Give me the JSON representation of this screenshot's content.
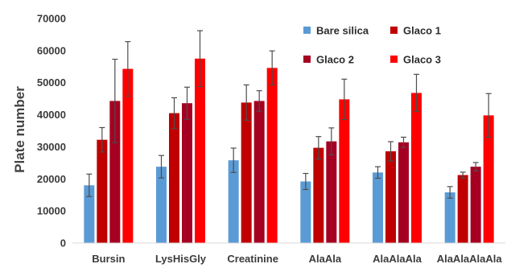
{
  "chart_data": {
    "type": "bar",
    "title": "",
    "xlabel": "",
    "ylabel": "Plate number",
    "ylim": [
      0,
      70000
    ],
    "yticks": [
      0,
      10000,
      20000,
      30000,
      40000,
      50000,
      60000,
      70000
    ],
    "grid": false,
    "legend_position": "top-right",
    "categories": [
      "Bursin",
      "LysHisGly",
      "Creatinine",
      "AlaAla",
      "AlaAlaAla",
      "AlaAlaAlaAla"
    ],
    "series": [
      {
        "name": "Bare silica",
        "color": "#5b9bd5",
        "values": [
          18000,
          23800,
          25800,
          19200,
          22000,
          15800
        ],
        "errors": [
          3500,
          3500,
          3800,
          2500,
          1800,
          1800
        ]
      },
      {
        "name": "Glaco 1",
        "color": "#c00000",
        "values": [
          32200,
          40500,
          43800,
          29700,
          28600,
          21200
        ],
        "errors": [
          3800,
          4800,
          5500,
          3500,
          3000,
          900
        ]
      },
      {
        "name": "Glaco 2",
        "color": "#a50021",
        "values": [
          44300,
          43600,
          44300,
          31700,
          31400,
          23800
        ],
        "errors": [
          13000,
          5000,
          3200,
          4200,
          1600,
          1300
        ]
      },
      {
        "name": "Glaco 3",
        "color": "#ff0000",
        "values": [
          54300,
          57500,
          54600,
          44800,
          46800,
          39800
        ],
        "errors": [
          8500,
          8700,
          5300,
          6300,
          5800,
          6800
        ]
      }
    ],
    "error_bar_color": "#4d4d4d"
  }
}
